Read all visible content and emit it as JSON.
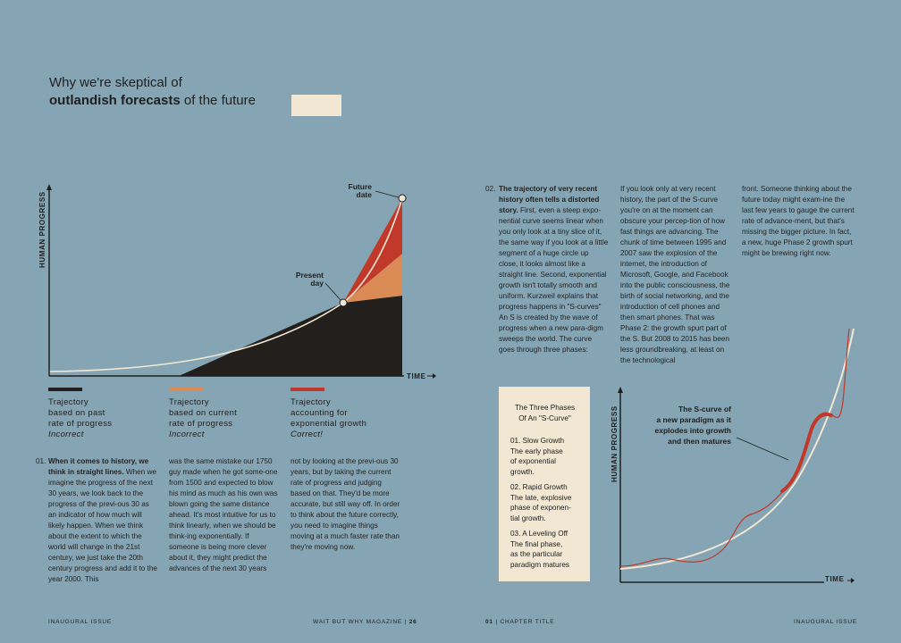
{
  "header": {
    "line1": "Why we're skeptical of",
    "line2_bold": "outlandish forecasts",
    "line2_rest": " of the future"
  },
  "left_chart": {
    "y_axis": "HUMAN PROGRESS",
    "x_axis": "TIME",
    "future_label": [
      "Future",
      "date"
    ],
    "present_label": [
      "Present",
      "day"
    ]
  },
  "legend": [
    {
      "color": "#231f1d",
      "lines": [
        "Trajectory",
        "based on past",
        "rate of progress"
      ],
      "verdict": "Incorrect"
    },
    {
      "color": "#d98a55",
      "lines": [
        "Trajectory",
        "based on current",
        "rate of progress"
      ],
      "verdict": "Incorrect"
    },
    {
      "color": "#c0392b",
      "lines": [
        "Trajectory",
        "accounting for",
        "exponential growth"
      ],
      "verdict": "Correct!"
    }
  ],
  "section01": {
    "num": "01.",
    "col1_bold": "When it comes to history, we think in straight lines.",
    "col1": " When we imagine the progress of the next 30 years, we look back to the progress of the previ-ous 30 as an indicator of how much will likely happen. When we think about the extent to which the world will change in the 21st century, we just take the 20th century progress and add it to the year 2000. This",
    "col2": "was the same mistake our 1750 guy made when he got some-one from 1500 and expected to blow his mind as much as his own was blown going the same distance ahead. It's most intuitive for us to think linearly, when we should be think-ing exponentially. If someone is being more clever about it, they might predict the advances of the next 30 years",
    "col3": "not by looking at the previ-ous 30 years, but by taking the current rate of progress and judging based on that. They'd be more accurate, but still way off. In order to think about the future correctly, you need to imagine things moving at a much faster rate than they're moving now."
  },
  "section02": {
    "num": "02.",
    "col1_bold": "The trajectory of very recent history often tells a distorted story.",
    "col1": " First, even a steep expo-nential curve seems linear when you only look at a tiny slice of it, the same way if you look at a little segment of a huge circle up close, it looks almost like a straight line. Second, exponential growth isn't totally smooth and uniform. Kurzweil explains that progress happens in \"S-curves\" An S is created by the wave of progress when a new para-digm sweeps the world. The curve goes through three phases:",
    "col2": "If you look only at very recent history, the part of the S-curve you're on at the moment can obscure your percep-tion of how fast things are advancing. The chunk of time between 1995 and 2007 saw the explosion of the internet, the introduction of Microsoft, Google, and Facebook into the public consciousness, the birth of social networking, and the introduction of cell phones and then smart phones. That was Phase 2: the growth spurt part of the S. But 2008 to 2015 has been less groundbreaking, at least on the technological",
    "col3": "front. Someone thinking about the future today might exam-ine the last few years to gauge the current rate of advance-ment, but that's missing the bigger picture. In fact, a new, huge Phase 2 growth spurt might be brewing right now."
  },
  "phases_box": {
    "title_lines": [
      "The Three Phases",
      "Of An \"S-Curve\""
    ],
    "phases": [
      {
        "title": "01. Slow Growth",
        "desc": [
          "The early phase",
          "of exponential",
          "growth."
        ]
      },
      {
        "title": "02. Rapid Growth",
        "desc": [
          "The late, explosive",
          "phase of exponen-",
          "tial growth."
        ]
      },
      {
        "title": "03. A Leveling Off",
        "desc": [
          "The final phase,",
          "as the particular",
          "paradigm matures"
        ]
      }
    ]
  },
  "right_chart": {
    "y_axis": "HUMAN PROGRESS",
    "x_axis": "TIME",
    "annotation": [
      "The S-curve of",
      "a new paradigm as it",
      "explodes into growth",
      "and then matures"
    ]
  },
  "footer": {
    "left": "INAUGURAL ISSUE",
    "center": "WAIT BUT WHY MAGAZINE",
    "page": "26",
    "right_num": "01",
    "right_label": "CHAPTER TITLE",
    "far_right": "INAUGURAL ISSUE"
  }
}
